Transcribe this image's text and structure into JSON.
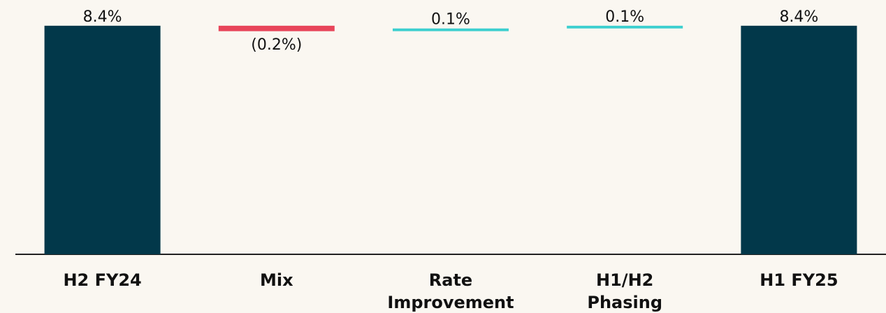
{
  "chart_data": {
    "type": "waterfall",
    "categories": [
      "H2 FY24",
      "Mix",
      "Rate Improvement",
      "H1/H2 Phasing",
      "H1 FY25"
    ],
    "category_lines": [
      [
        "H2 FY24"
      ],
      [
        "Mix"
      ],
      [
        "Rate",
        "Improvement"
      ],
      [
        "H1/H2",
        "Phasing"
      ],
      [
        "H1 FY25"
      ]
    ],
    "values": [
      8.4,
      -0.2,
      0.1,
      0.1,
      8.4
    ],
    "kinds": [
      "total",
      "decrease",
      "increase",
      "increase",
      "total"
    ],
    "data_labels": [
      "8.4%",
      "(0.2%)",
      "0.1%",
      "0.1%",
      "8.4%"
    ],
    "ylim": [
      0,
      8.55
    ],
    "title": "",
    "xlabel": "",
    "ylabel": "",
    "grid": false,
    "legend": "none",
    "colors": {
      "total": "#02384A",
      "decrease": "#E8455A",
      "increase": "#3CCFCF",
      "axis": "#222222",
      "background": "#FAF7F1"
    }
  }
}
